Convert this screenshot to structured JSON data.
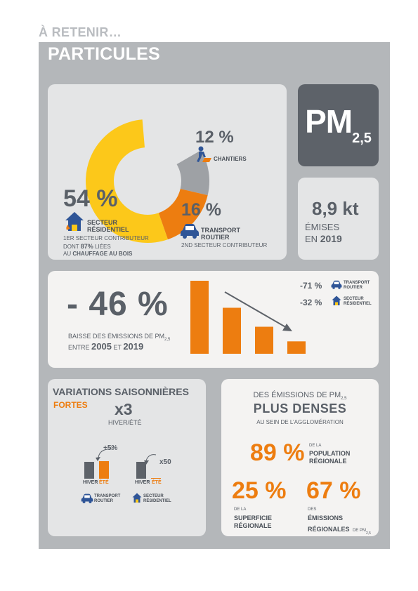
{
  "header": {
    "kicker": "À RETENIR…",
    "title": "PARTICULES"
  },
  "pollutant": {
    "main": "PM",
    "sub": "2,5"
  },
  "emissions": {
    "value": "8,9 kt",
    "line1": "ÉMISES",
    "line2_prefix": "EN",
    "line2_year": "2019"
  },
  "donut": {
    "chart_data": {
      "type": "pie",
      "series": [
        {
          "name": "SECTEUR RÉSIDENTIEL",
          "value": 54
        },
        {
          "name": "TRANSPORT ROUTIER",
          "value": 16
        },
        {
          "name": "CHANTIERS",
          "value": 12
        }
      ]
    },
    "colors": {
      "residential": "#fcc81a",
      "transport": "#ed7d10",
      "chantiers": "#9ea1a5",
      "other": "#e4e5e6"
    },
    "residential": {
      "pct": "54 %",
      "label1": "SECTEUR",
      "label2": "RÉSIDENTIEL",
      "note1": "1ER SECTEUR CONTRIBUTEUR",
      "note2a": "DONT",
      "note2b": "87%",
      "note2c": "LIÉES",
      "note3a": "AU",
      "note3b": "CHAUFFAGE AU BOIS"
    },
    "transport": {
      "pct": "16 %",
      "label1": "TRANSPORT",
      "label2": "ROUTIER",
      "note": "2ND SECTEUR CONTRIBUTEUR"
    },
    "chantiers": {
      "pct": "12 %",
      "label": "CHANTIERS"
    }
  },
  "trend": {
    "value": "- 46 %",
    "desc1": "BAISSE DES ÉMISSIONS DE PM",
    "desc1_sub": "2,5",
    "desc2a": "ENTRE",
    "year1": "2005",
    "desc2b": "ET",
    "year2": "2019",
    "transport": {
      "pct": "-71 %",
      "label1": "TRANSPORT",
      "label2": "ROUTIER"
    },
    "residential": {
      "pct": "-32 %",
      "label1": "SECTEUR",
      "label2": "RÉSIDENTIEL"
    },
    "chart_data": {
      "type": "bar",
      "values": [
        100,
        63,
        37,
        17
      ]
    }
  },
  "seasonal": {
    "title": "VARIATIONS SAISONNIÈRES",
    "strong": "FORTES",
    "factor": "x3",
    "factor_label": "HIVER/ÉTÉ",
    "transport_delta": "+5%",
    "residential_delta": "x50",
    "hiver": "HIVER",
    "ete": "ÉTÉ",
    "transport_label1": "TRANSPORT",
    "transport_label2": "ROUTIER",
    "residential_label1": "SECTEUR",
    "residential_label2": "RÉSIDENTIEL"
  },
  "urban": {
    "top1": "DES ÉMISSIONS DE PM",
    "top1_sub": "2,5",
    "headline": "PLUS DENSES",
    "sub": "AU SEIN DE L’AGGLOMÉRATION",
    "pop_pct": "89 %",
    "pop_l1": "DE LA",
    "pop_l2": "POPULATION",
    "pop_l3": "RÉGIONALE",
    "area_pct": "25 %",
    "area_l1": "DE LA",
    "area_l2": "SUPERFICIE",
    "area_l3": "RÉGIONALE",
    "em_pct": "67 %",
    "em_l1": "DES",
    "em_l2": "ÉMISSIONS",
    "em_l3": "RÉGIONALES",
    "em_l4": "DE PM",
    "em_l4_sub": "2,5"
  }
}
